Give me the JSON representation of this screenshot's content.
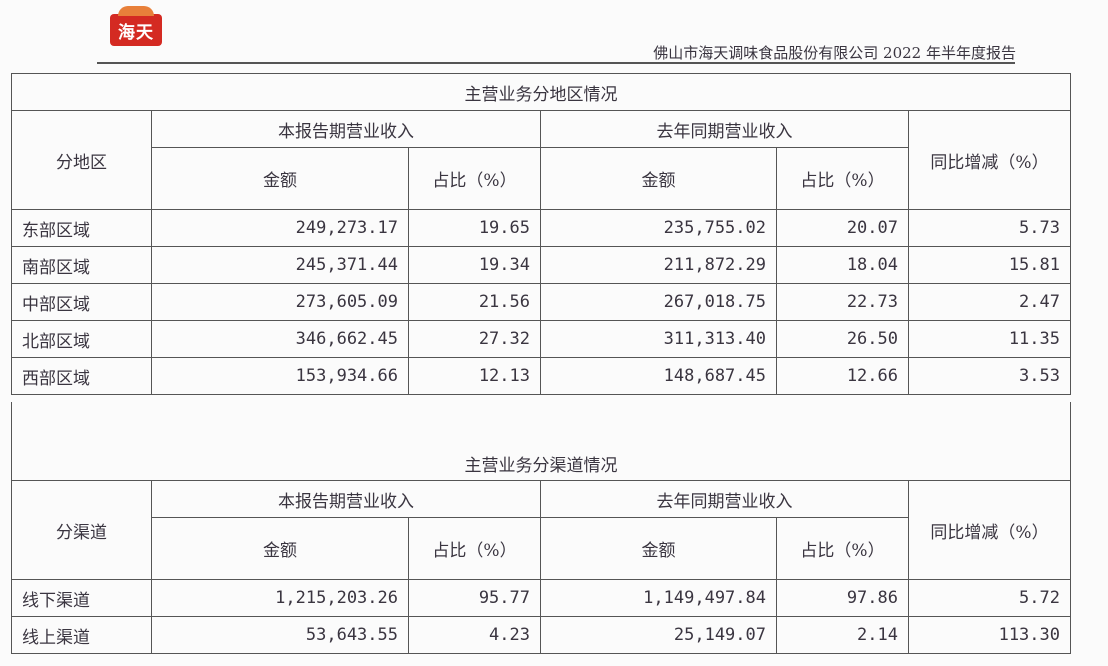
{
  "header": {
    "logo_text": "海天",
    "report_title": "佛山市海天调味食品股份有限公司 2022 年半年度报告"
  },
  "region_table": {
    "title": "主营业务分地区情况",
    "row_header": "分地区",
    "current_period": "本报告期营业收入",
    "prior_period": "去年同期营业收入",
    "amount": "金额",
    "share": "占比（%）",
    "yoy": "同比增减（%）",
    "rows": [
      {
        "name": "东部区域",
        "cur_amount": "249,273.17",
        "cur_share": "19.65",
        "prev_amount": "235,755.02",
        "prev_share": "20.07",
        "yoy": "5.73"
      },
      {
        "name": "南部区域",
        "cur_amount": "245,371.44",
        "cur_share": "19.34",
        "prev_amount": "211,872.29",
        "prev_share": "18.04",
        "yoy": "15.81"
      },
      {
        "name": "中部区域",
        "cur_amount": "273,605.09",
        "cur_share": "21.56",
        "prev_amount": "267,018.75",
        "prev_share": "22.73",
        "yoy": "2.47"
      },
      {
        "name": "北部区域",
        "cur_amount": "346,662.45",
        "cur_share": "27.32",
        "prev_amount": "311,313.40",
        "prev_share": "26.50",
        "yoy": "11.35"
      },
      {
        "name": "西部区域",
        "cur_amount": "153,934.66",
        "cur_share": "12.13",
        "prev_amount": "148,687.45",
        "prev_share": "12.66",
        "yoy": "3.53"
      }
    ]
  },
  "channel_table": {
    "title": "主营业务分渠道情况",
    "row_header": "分渠道",
    "current_period": "本报告期营业收入",
    "prior_period": "去年同期营业收入",
    "amount": "金额",
    "share": "占比（%）",
    "yoy": "同比增减（%）",
    "rows": [
      {
        "name": "线下渠道",
        "cur_amount": "1,215,203.26",
        "cur_share": "95.77",
        "prev_amount": "1,149,497.84",
        "prev_share": "97.86",
        "yoy": "5.72"
      },
      {
        "name": "线上渠道",
        "cur_amount": "53,643.55",
        "cur_share": "4.23",
        "prev_amount": "25,149.07",
        "prev_share": "2.14",
        "yoy": "113.30"
      }
    ]
  }
}
